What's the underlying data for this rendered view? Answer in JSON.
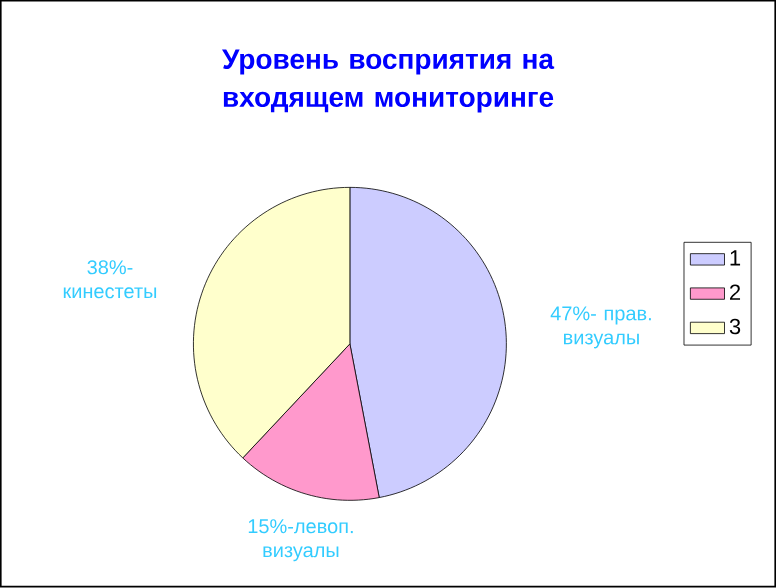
{
  "chart_data": {
    "type": "pie",
    "title": "Уровень восприятия на входящем мониторинге",
    "categories": [
      "1",
      "2",
      "3"
    ],
    "values": [
      47,
      15,
      38
    ],
    "colors": [
      "#ccccff",
      "#ff99cc",
      "#ffffcc"
    ],
    "value_labels": [
      "47%- прав. визуалы",
      "15%-левоп. визуалы",
      "38%- кинестеты"
    ],
    "legend": "right"
  }
}
